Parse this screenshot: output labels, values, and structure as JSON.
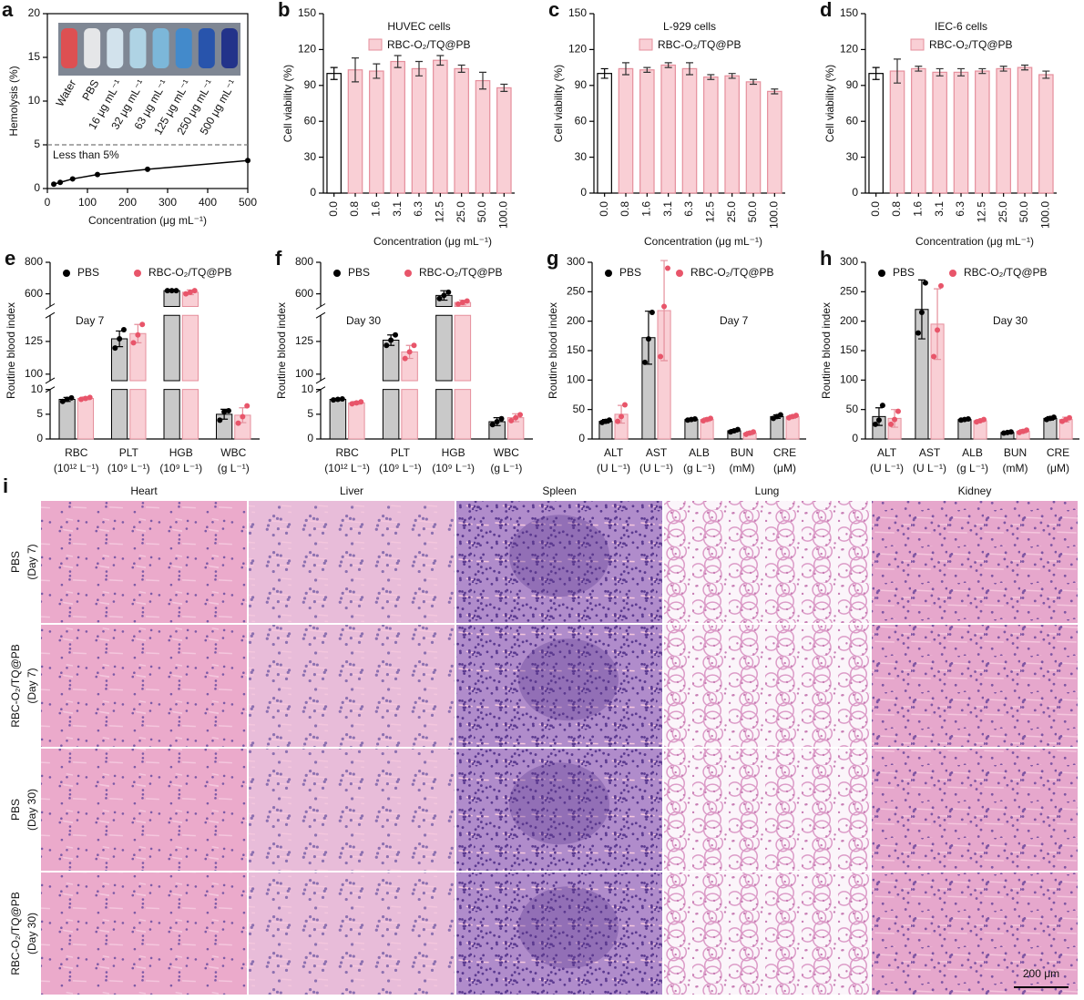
{
  "chart_data": [
    {
      "type": "line",
      "panel_label": "a",
      "x": [
        16,
        32,
        63,
        125,
        250,
        500
      ],
      "values": [
        0.5,
        0.7,
        1.1,
        1.6,
        2.2,
        3.2
      ],
      "color": "#000000",
      "xlim": [
        0,
        500
      ],
      "xticks": [
        0,
        100,
        200,
        300,
        400,
        500
      ],
      "ylim": [
        0,
        20
      ],
      "yticks": [
        0,
        5,
        10,
        15,
        20
      ],
      "xlabel": "Concentration (μg mL⁻¹)",
      "ylabel": "Hemolysis (%)",
      "ref_line": 5,
      "annotation": "Less than 5%",
      "inset_labels": [
        "Water",
        "PBS",
        "16 μg mL⁻¹",
        "32 μg mL⁻¹",
        "63 μg mL⁻¹",
        "125 μg mL⁻¹",
        "250 μg mL⁻¹",
        "500 μg mL⁻¹"
      ]
    },
    {
      "type": "bar",
      "panel_label": "b",
      "title": "HUVEC cells",
      "legend": "RBC-O₂/TQ@PB",
      "categories": [
        "0.0",
        "0.8",
        "1.6",
        "3.1",
        "6.3",
        "12.5",
        "25.0",
        "50.0",
        "100.0"
      ],
      "values": [
        100,
        103,
        102,
        110,
        104,
        111,
        104,
        94,
        88
      ],
      "errors": [
        5,
        10,
        6,
        5,
        6,
        4,
        3,
        7,
        3
      ],
      "colors": [
        "#ffffff",
        "#f9cfd5",
        "#f9cfd5",
        "#f9cfd5",
        "#f9cfd5",
        "#f9cfd5",
        "#f9cfd5",
        "#f9cfd5",
        "#f9cfd5"
      ],
      "edge_colors": [
        "#000000",
        "#e58f9c",
        "#e58f9c",
        "#e58f9c",
        "#e58f9c",
        "#e58f9c",
        "#e58f9c",
        "#e58f9c",
        "#e58f9c"
      ],
      "ylim": [
        0,
        150
      ],
      "yticks": [
        0,
        30,
        60,
        90,
        120,
        150
      ],
      "xlabel": "Concentration (μg mL⁻¹)",
      "ylabel": "Cell viability (%)"
    },
    {
      "type": "bar",
      "panel_label": "c",
      "title": "L-929 cells",
      "legend": "RBC-O₂/TQ@PB",
      "categories": [
        "0.0",
        "0.8",
        "1.6",
        "3.1",
        "6.3",
        "12.5",
        "25.0",
        "50.0",
        "100.0"
      ],
      "values": [
        100,
        104,
        103,
        107,
        104,
        97,
        98,
        93,
        85
      ],
      "errors": [
        4,
        5,
        2,
        2,
        5,
        2,
        2,
        2,
        2
      ],
      "colors": [
        "#ffffff",
        "#f9cfd5",
        "#f9cfd5",
        "#f9cfd5",
        "#f9cfd5",
        "#f9cfd5",
        "#f9cfd5",
        "#f9cfd5",
        "#f9cfd5"
      ],
      "edge_colors": [
        "#000000",
        "#e58f9c",
        "#e58f9c",
        "#e58f9c",
        "#e58f9c",
        "#e58f9c",
        "#e58f9c",
        "#e58f9c",
        "#e58f9c"
      ],
      "ylim": [
        0,
        150
      ],
      "yticks": [
        0,
        30,
        60,
        90,
        120,
        150
      ],
      "xlabel": "Concentration (μg mL⁻¹)",
      "ylabel": "Cell viability (%)"
    },
    {
      "type": "bar",
      "panel_label": "d",
      "title": "IEC-6 cells",
      "legend": "RBC-O₂/TQ@PB",
      "categories": [
        "0.0",
        "0.8",
        "1.6",
        "3.1",
        "6.3",
        "12.5",
        "25.0",
        "50.0",
        "100.0"
      ],
      "values": [
        100,
        102,
        104,
        101,
        101,
        102,
        104,
        105,
        99
      ],
      "errors": [
        5,
        10,
        2,
        3,
        3,
        2,
        2,
        2,
        3
      ],
      "colors": [
        "#ffffff",
        "#f9cfd5",
        "#f9cfd5",
        "#f9cfd5",
        "#f9cfd5",
        "#f9cfd5",
        "#f9cfd5",
        "#f9cfd5",
        "#f9cfd5"
      ],
      "edge_colors": [
        "#000000",
        "#e58f9c",
        "#e58f9c",
        "#e58f9c",
        "#e58f9c",
        "#e58f9c",
        "#e58f9c",
        "#e58f9c",
        "#e58f9c"
      ],
      "ylim": [
        0,
        150
      ],
      "yticks": [
        0,
        30,
        60,
        90,
        120,
        150
      ],
      "xlabel": "Concentration (μg mL⁻¹)",
      "ylabel": "Cell viability (%)"
    },
    {
      "type": "broken_bar",
      "panel_label": "e",
      "annotation": "Day 7",
      "ylabel": "Routine blood index",
      "categories": [
        "RBC",
        "PLT",
        "HGB",
        "WBC"
      ],
      "category_units": [
        "(10¹² L⁻¹)",
        "(10⁹ L⁻¹)",
        "(10⁹ L⁻¹)",
        "(g L⁻¹)"
      ],
      "y_segments": [
        {
          "ylim": [
            0,
            10
          ],
          "yticks": [
            0,
            5,
            10
          ]
        },
        {
          "ylim": [
            95,
            145
          ],
          "yticks": [
            100,
            125
          ]
        },
        {
          "ylim": [
            520,
            800
          ],
          "yticks": [
            600,
            800
          ]
        }
      ],
      "series": [
        {
          "name": "PBS",
          "color": "#c9c9c9",
          "edge_color": "#000000",
          "point_color": "#000000",
          "values": [
            8,
            127,
            620,
            5
          ],
          "errors": [
            0.4,
            6,
            5,
            1
          ],
          "points": [
            [
              7.6,
              8,
              8.3
            ],
            [
              120,
              127,
              134
            ],
            [
              620,
              620,
              620
            ],
            [
              3.8,
              5.5,
              5.7
            ]
          ]
        },
        {
          "name": "RBC-O₂/TQ@PB",
          "color": "#f9cfd5",
          "edge_color": "#e58f9c",
          "point_color": "#e8556a",
          "values": [
            8.2,
            131,
            610,
            4.8
          ],
          "errors": [
            0.3,
            7,
            15,
            1.5
          ],
          "points": [
            [
              8,
              8.2,
              8.4
            ],
            [
              124,
              130,
              138
            ],
            [
              600,
              610,
              620
            ],
            [
              3.2,
              4.5,
              6.7
            ]
          ]
        }
      ]
    },
    {
      "type": "broken_bar",
      "panel_label": "f",
      "annotation": "Day 30",
      "ylabel": "Routine blood index",
      "categories": [
        "RBC",
        "PLT",
        "HGB",
        "WBC"
      ],
      "category_units": [
        "(10¹² L⁻¹)",
        "(10⁹ L⁻¹)",
        "(10⁹ L⁻¹)",
        "(g L⁻¹)"
      ],
      "y_segments": [
        {
          "ylim": [
            0,
            10
          ],
          "yticks": [
            0,
            5,
            10
          ]
        },
        {
          "ylim": [
            95,
            145
          ],
          "yticks": [
            100,
            125
          ]
        },
        {
          "ylim": [
            520,
            800
          ],
          "yticks": [
            600,
            800
          ]
        }
      ],
      "series": [
        {
          "name": "PBS",
          "color": "#c9c9c9",
          "edge_color": "#000000",
          "point_color": "#000000",
          "values": [
            8,
            126,
            590,
            3.5
          ],
          "errors": [
            0.2,
            4,
            30,
            0.8
          ],
          "points": [
            [
              7.9,
              8,
              8.1
            ],
            [
              122,
              126,
              130
            ],
            [
              570,
              590,
              610
            ],
            [
              2.9,
              3.5,
              4.1
            ]
          ]
        },
        {
          "name": "RBC-O₂/TQ@PB",
          "color": "#f9cfd5",
          "edge_color": "#e58f9c",
          "point_color": "#e8556a",
          "values": [
            7.3,
            117,
            545,
            4.3
          ],
          "errors": [
            0.3,
            5,
            15,
            0.8
          ],
          "points": [
            [
              7.1,
              7.3,
              7.5
            ],
            [
              112,
              117,
              122
            ],
            [
              535,
              545,
              555
            ],
            [
              3.7,
              4.3,
              4.9
            ]
          ]
        }
      ]
    },
    {
      "type": "grouped_bar",
      "panel_label": "g",
      "annotation": "Day 7",
      "ylabel": "Routine blood index",
      "categories": [
        "ALT",
        "AST",
        "ALB",
        "BUN",
        "CRE"
      ],
      "category_units": [
        "(U L⁻¹)",
        "(U L⁻¹)",
        "(g L⁻¹)",
        "(mM)",
        "(μM)"
      ],
      "ylim": [
        0,
        300
      ],
      "yticks": [
        0,
        50,
        100,
        150,
        200,
        250,
        300
      ],
      "series": [
        {
          "name": "PBS",
          "color": "#c9c9c9",
          "edge_color": "#000000",
          "point_color": "#000000",
          "values": [
            30,
            172,
            33,
            14,
            38
          ],
          "errors": [
            3,
            45,
            2,
            2,
            3
          ],
          "points": [
            [
              28,
              30,
              32
            ],
            [
              130,
              170,
              215
            ],
            [
              32,
              33,
              34
            ],
            [
              12,
              14,
              16
            ],
            [
              35,
              38,
              41
            ]
          ]
        },
        {
          "name": "RBC-O₂/TQ@PB",
          "color": "#f9cfd5",
          "edge_color": "#e58f9c",
          "point_color": "#e8556a",
          "values": [
            42,
            218,
            33,
            10,
            38
          ],
          "errors": [
            15,
            85,
            3,
            3,
            3
          ],
          "points": [
            [
              30,
              38,
              58
            ],
            [
              140,
              225,
              290
            ],
            [
              31,
              33,
              35
            ],
            [
              8,
              10,
              12
            ],
            [
              36,
              38,
              40
            ]
          ]
        }
      ]
    },
    {
      "type": "grouped_bar",
      "panel_label": "h",
      "annotation": "Day 30",
      "ylabel": "Routine blood index",
      "categories": [
        "ALT",
        "AST",
        "ALB",
        "BUN",
        "CRE"
      ],
      "category_units": [
        "(U L⁻¹)",
        "(U L⁻¹)",
        "(g L⁻¹)",
        "(mM)",
        "(μM)"
      ],
      "ylim": [
        0,
        300
      ],
      "yticks": [
        0,
        50,
        100,
        150,
        200,
        250,
        300
      ],
      "series": [
        {
          "name": "PBS",
          "color": "#c9c9c9",
          "edge_color": "#000000",
          "point_color": "#000000",
          "values": [
            38,
            220,
            33,
            11,
            35
          ],
          "errors": [
            15,
            50,
            2,
            2,
            3
          ],
          "points": [
            [
              25,
              32,
              57
            ],
            [
              180,
              215,
              265
            ],
            [
              32,
              33,
              34
            ],
            [
              10,
              11,
              12
            ],
            [
              33,
              35,
              37
            ]
          ]
        },
        {
          "name": "RBC-O₂/TQ@PB",
          "color": "#f9cfd5",
          "edge_color": "#e58f9c",
          "point_color": "#e8556a",
          "values": [
            35,
            195,
            31,
            13,
            33
          ],
          "errors": [
            15,
            60,
            2,
            3,
            4
          ],
          "points": [
            [
              25,
              33,
              47
            ],
            [
              140,
              185,
              260
            ],
            [
              29,
              31,
              33
            ],
            [
              11,
              13,
              15
            ],
            [
              30,
              33,
              36
            ]
          ]
        }
      ]
    }
  ],
  "histology": {
    "panel_label": "i",
    "columns": [
      "Heart",
      "Liver",
      "Spleen",
      "Lung",
      "Kidney"
    ],
    "rows": [
      [
        "PBS",
        "(Day 7)"
      ],
      [
        "RBC-O₂/TQ@PB",
        "(Day 7)"
      ],
      [
        "PBS",
        "(Day 30)"
      ],
      [
        "RBC-O₂/TQ@PB",
        "(Day 30)"
      ]
    ],
    "scale_bar": "200 μm"
  }
}
